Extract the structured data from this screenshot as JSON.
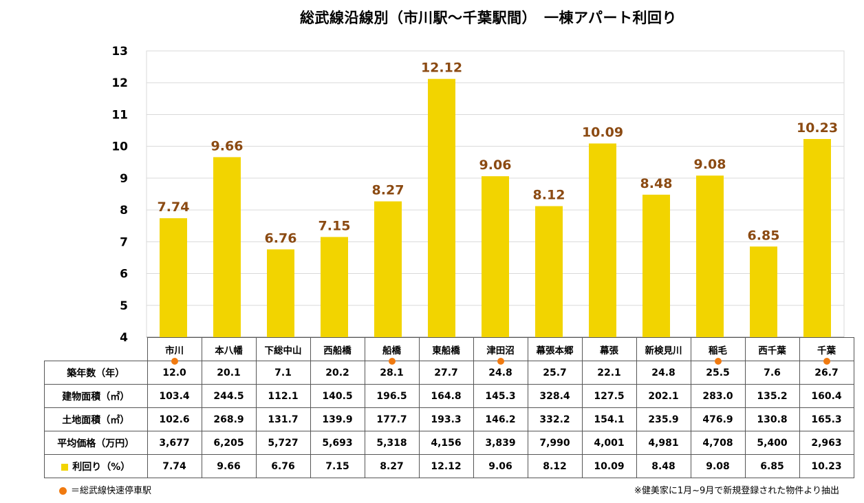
{
  "title": "総武線沿線別（市川駅～千葉駅間）　一棟アパート利回り",
  "colors": {
    "bar": "#f2d400",
    "value_label": "#8b4a12",
    "rapid_dot": "#f07a10",
    "grid": "#d9d9d9"
  },
  "chart_data": {
    "type": "bar",
    "categories": [
      "市川",
      "本八幡",
      "下総中山",
      "西船橋",
      "船橋",
      "東船橋",
      "津田沼",
      "幕張本郷",
      "幕張",
      "新検見川",
      "稲毛",
      "西千葉",
      "千葉"
    ],
    "values": [
      7.74,
      9.66,
      6.76,
      7.15,
      8.27,
      12.12,
      9.06,
      8.12,
      10.09,
      8.48,
      9.08,
      6.85,
      10.23
    ],
    "value_labels": [
      "7.74",
      "9.66",
      "6.76",
      "7.15",
      "8.27",
      "12.12",
      "9.06",
      "8.12",
      "10.09",
      "8.48",
      "9.08",
      "6.85",
      "10.23"
    ],
    "ylim": [
      4,
      13
    ],
    "yticks": [
      "4",
      "5",
      "6",
      "7",
      "8",
      "9",
      "10",
      "11",
      "12",
      "13"
    ],
    "grid": true,
    "rapid_stops": [
      true,
      false,
      false,
      false,
      true,
      false,
      true,
      false,
      false,
      false,
      true,
      false,
      true
    ]
  },
  "table": {
    "rows": [
      {
        "label": "築年数（年）",
        "values": [
          "12.0",
          "20.1",
          "7.1",
          "20.2",
          "28.1",
          "27.7",
          "24.8",
          "25.7",
          "22.1",
          "24.8",
          "25.5",
          "7.6",
          "26.7"
        ]
      },
      {
        "label": "建物面積（㎡）",
        "values": [
          "103.4",
          "244.5",
          "112.1",
          "140.5",
          "196.5",
          "164.8",
          "145.3",
          "328.4",
          "127.5",
          "202.1",
          "283.0",
          "135.2",
          "160.4"
        ]
      },
      {
        "label": "土地面積（㎡）",
        "values": [
          "102.6",
          "268.9",
          "131.7",
          "139.9",
          "177.7",
          "193.3",
          "146.2",
          "332.2",
          "154.1",
          "235.9",
          "476.9",
          "130.8",
          "165.3"
        ]
      },
      {
        "label": "平均価格（万円）",
        "values": [
          "3,677",
          "6,205",
          "5,727",
          "5,693",
          "5,318",
          "4,156",
          "3,839",
          "7,990",
          "4,001",
          "4,981",
          "4,708",
          "5,400",
          "2,963"
        ]
      },
      {
        "label": "利回り（%）",
        "values": [
          "7.74",
          "9.66",
          "6.76",
          "7.15",
          "8.27",
          "12.12",
          "9.06",
          "8.12",
          "10.09",
          "8.48",
          "9.08",
          "6.85",
          "10.23"
        ]
      }
    ]
  },
  "legend_text": "＝総武線快速停車駅",
  "note": "※健美家に1月~9月で新規登録された物件より抽出"
}
